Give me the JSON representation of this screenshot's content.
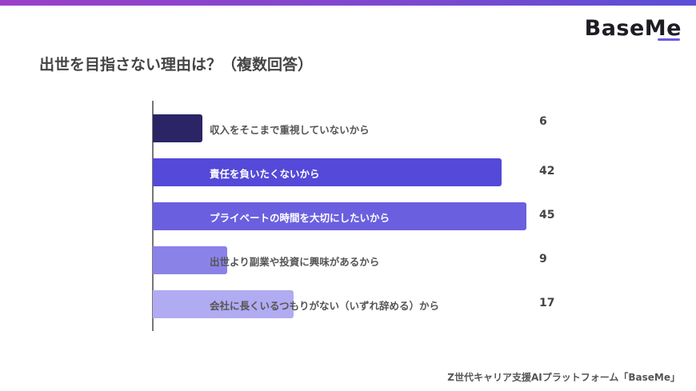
{
  "header": {
    "logo": "BaseMe"
  },
  "title": "出世を目指さない理由は？（複数回答）",
  "footer": "Z世代キャリア支援AIプラットフォーム「BaseMe」",
  "chart_data": {
    "type": "bar",
    "orientation": "horizontal",
    "title": "出世を目指さない理由は？（複数回答）",
    "categories": [
      "収入をそこまで重視していないから",
      "責任を負いたくないから",
      "プライベートの時間を大切にしたいから",
      "出世より副業や投資に興味があるから",
      "会社に長くいるつもりがない（いずれ辞める）から"
    ],
    "values": [
      6,
      42,
      45,
      9,
      17
    ],
    "colors": [
      "#2b2566",
      "#5449d8",
      "#6a60df",
      "#8b82e8",
      "#b1abf1"
    ],
    "label_colors": [
      "#555555",
      "#ffffff",
      "#ffffff",
      "#555555",
      "#555555"
    ],
    "xlabel": "",
    "ylabel": "",
    "grid": false,
    "legend": "none"
  }
}
